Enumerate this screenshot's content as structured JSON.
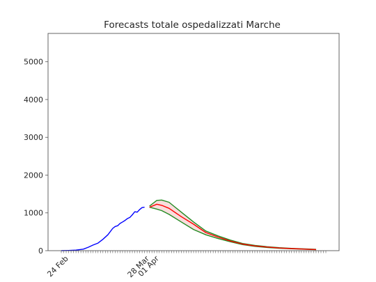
{
  "chart_data": {
    "type": "line",
    "title": "Forecasts totale ospedalizzati Marche",
    "xlabel": "",
    "ylabel": "",
    "x_start_date": "2020-02-21",
    "x_total_days": 108,
    "xlim_days": [
      -5.4,
      113.4
    ],
    "ylim": [
      0,
      5750
    ],
    "y_ticks": [
      0,
      1000,
      2000,
      3000,
      4000,
      5000
    ],
    "x_tick_labels": [
      {
        "label": "24 Feb",
        "date": "2020-02-24"
      },
      {
        "label": "28 Mar",
        "date": "2020-03-28"
      },
      {
        "label": "01 Apr",
        "date": "2020-04-01"
      }
    ],
    "grid": false,
    "legend": "none",
    "colors": {
      "observed": "#0000ff",
      "forecast": "#ff0000",
      "bounds": "#228b22",
      "band_fill": "#f4c6c6"
    },
    "series": [
      {
        "role": "observed",
        "x": [
          "2020-02-21",
          "2020-02-24",
          "2020-02-27",
          "2020-03-01",
          "2020-03-03",
          "2020-03-05",
          "2020-03-07",
          "2020-03-09",
          "2020-03-11",
          "2020-03-13",
          "2020-03-14",
          "2020-03-15",
          "2020-03-16",
          "2020-03-17",
          "2020-03-18",
          "2020-03-19",
          "2020-03-20",
          "2020-03-21",
          "2020-03-22",
          "2020-03-23",
          "2020-03-24",
          "2020-03-25",
          "2020-03-26"
        ],
        "y": [
          0,
          5,
          15,
          40,
          90,
          150,
          200,
          300,
          420,
          590,
          640,
          660,
          720,
          760,
          800,
          850,
          880,
          950,
          1030,
          1020,
          1090,
          1140,
          1150
        ]
      },
      {
        "role": "forecast",
        "x": [
          "2020-03-28",
          "2020-03-31",
          "2020-04-02",
          "2020-04-05",
          "2020-04-10",
          "2020-04-15",
          "2020-04-20",
          "2020-04-25",
          "2020-04-30",
          "2020-05-05",
          "2020-05-10",
          "2020-05-15",
          "2020-05-20",
          "2020-05-25",
          "2020-06-04"
        ],
        "y": [
          1150,
          1230,
          1200,
          1120,
          900,
          700,
          480,
          360,
          255,
          175,
          125,
          95,
          70,
          55,
          30
        ]
      },
      {
        "role": "upper",
        "x": [
          "2020-03-28",
          "2020-03-31",
          "2020-04-02",
          "2020-04-05",
          "2020-04-10",
          "2020-04-15",
          "2020-04-20",
          "2020-04-25",
          "2020-04-30",
          "2020-05-05",
          "2020-05-10",
          "2020-05-15",
          "2020-05-20",
          "2020-05-25",
          "2020-06-04"
        ],
        "y": [
          1180,
          1330,
          1340,
          1280,
          1020,
          760,
          520,
          390,
          280,
          190,
          140,
          105,
          80,
          60,
          35
        ]
      },
      {
        "role": "lower",
        "x": [
          "2020-03-28",
          "2020-03-31",
          "2020-04-02",
          "2020-04-05",
          "2020-04-10",
          "2020-04-15",
          "2020-04-20",
          "2020-04-25",
          "2020-04-30",
          "2020-05-05",
          "2020-05-10",
          "2020-05-15",
          "2020-05-20",
          "2020-05-25",
          "2020-06-04"
        ],
        "y": [
          1150,
          1100,
          1060,
          960,
          760,
          560,
          420,
          320,
          235,
          160,
          115,
          85,
          65,
          50,
          25
        ]
      }
    ]
  }
}
